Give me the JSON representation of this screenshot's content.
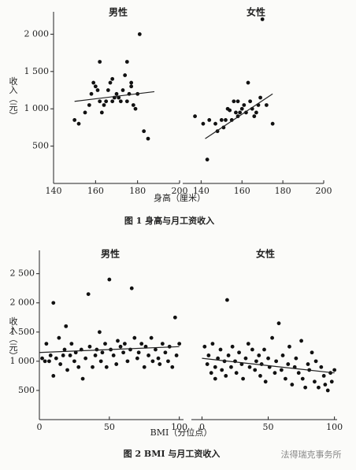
{
  "chart_data": [
    {
      "type": "scatter",
      "title": "图 1  身高与月工资收入",
      "y_label": "收入（元）",
      "x_label": "身高（厘米）",
      "color": "#111111",
      "ylim": [
        0,
        2300
      ],
      "yticks": [
        500,
        {
          "value": 1000,
          "label": "1 000"
        },
        {
          "value": 1500,
          "label": "1 500"
        },
        {
          "value": 2000,
          "label": "2 000"
        }
      ],
      "panels": [
        {
          "title": "男性",
          "xlim": [
            140,
            200
          ],
          "xticks": [
            140,
            160,
            180,
            200
          ],
          "x": [
            150,
            152,
            155,
            157,
            158,
            159,
            160,
            161,
            162,
            162,
            163,
            164,
            165,
            166,
            167,
            168,
            168,
            169,
            170,
            171,
            172,
            173,
            174,
            175,
            175,
            176,
            177,
            177,
            178,
            179,
            180,
            181,
            183,
            185
          ],
          "y": [
            850,
            800,
            950,
            1050,
            1200,
            1350,
            1300,
            1250,
            1630,
            1100,
            950,
            1050,
            1100,
            1250,
            1350,
            1400,
            1100,
            1150,
            1200,
            1150,
            1100,
            1250,
            1450,
            1630,
            1100,
            1200,
            1350,
            1300,
            1050,
            1000,
            1200,
            2000,
            700,
            600
          ],
          "trend": {
            "x": [
              150,
              188
            ],
            "y": [
              1100,
              1230
            ]
          }
        },
        {
          "title": "女性",
          "xlim": [
            131,
            200
          ],
          "xticks": [
            140,
            160,
            180,
            200
          ],
          "x": [
            137,
            141,
            143,
            144,
            147,
            148,
            150,
            151,
            152,
            153,
            154,
            155,
            156,
            157,
            158,
            158,
            159,
            160,
            161,
            162,
            163,
            164,
            165,
            166,
            167,
            168,
            169,
            170,
            172,
            175
          ],
          "y": [
            900,
            800,
            320,
            850,
            800,
            700,
            850,
            750,
            850,
            1000,
            980,
            850,
            1100,
            950,
            900,
            1100,
            950,
            1000,
            1050,
            950,
            1350,
            1100,
            1000,
            900,
            950,
            1050,
            1150,
            2200,
            1050,
            800
          ],
          "trend": {
            "x": [
              142,
              175
            ],
            "y": [
              600,
              1200
            ]
          }
        }
      ]
    },
    {
      "type": "scatter",
      "title": "图 2  BMI 与月工资收入",
      "y_label": "收入（元）",
      "x_label": "BMI（分位点）",
      "color": "#111111",
      "ylim": [
        0,
        2900
      ],
      "yticks": [
        500,
        {
          "value": 1000,
          "label": "1 000"
        },
        {
          "value": 1500,
          "label": "1 500"
        },
        {
          "value": 2000,
          "label": "2 000"
        },
        {
          "value": 2500,
          "label": "2 500"
        }
      ],
      "panels": [
        {
          "title": "男性",
          "xlim": [
            0,
            103
          ],
          "xticks": [
            0,
            50,
            100
          ],
          "x": [
            2,
            4,
            5,
            7,
            8,
            10,
            10,
            12,
            14,
            15,
            17,
            18,
            19,
            20,
            22,
            23,
            25,
            26,
            28,
            30,
            31,
            33,
            35,
            36,
            38,
            40,
            41,
            43,
            44,
            45,
            47,
            48,
            50,
            51,
            53,
            55,
            56,
            58,
            60,
            61,
            63,
            65,
            66,
            68,
            70,
            71,
            73,
            75,
            76,
            78,
            80,
            81,
            83,
            85,
            86,
            88,
            90,
            92,
            93,
            95,
            97,
            98,
            100
          ],
          "y": [
            1050,
            1000,
            1300,
            1000,
            1100,
            750,
            2000,
            1050,
            1400,
            950,
            1100,
            1200,
            1600,
            850,
            1100,
            1300,
            1000,
            1150,
            900,
            1200,
            700,
            1050,
            2150,
            1250,
            900,
            1100,
            1200,
            1500,
            1000,
            1150,
            1300,
            900,
            2400,
            1200,
            1100,
            950,
            1350,
            1250,
            1150,
            1300,
            1000,
            1200,
            2250,
            1400,
            1050,
            1150,
            1300,
            900,
            1250,
            1100,
            1400,
            1000,
            1200,
            1050,
            950,
            1300,
            1150,
            1000,
            1250,
            900,
            1750,
            1100,
            1300
          ],
          "trend": {
            "x": [
              0,
              100
            ],
            "y": [
              1150,
              1250
            ]
          }
        },
        {
          "title": "女性",
          "xlim": [
            -8,
            102
          ],
          "xticks": [
            0,
            50,
            100
          ],
          "x": [
            2,
            4,
            5,
            7,
            8,
            10,
            10,
            12,
            14,
            15,
            17,
            18,
            19,
            20,
            22,
            23,
            25,
            26,
            28,
            30,
            31,
            33,
            35,
            36,
            38,
            40,
            41,
            43,
            44,
            45,
            47,
            48,
            50,
            51,
            53,
            55,
            56,
            58,
            60,
            61,
            63,
            65,
            66,
            68,
            70,
            71,
            73,
            75,
            76,
            78,
            80,
            81,
            83,
            85,
            86,
            88,
            90,
            92,
            93,
            95,
            97,
            98,
            100
          ],
          "y": [
            1250,
            950,
            1100,
            800,
            1300,
            700,
            900,
            1050,
            1200,
            850,
            1000,
            750,
            2050,
            1100,
            900,
            1250,
            1000,
            800,
            1150,
            950,
            700,
            1050,
            1300,
            900,
            1200,
            850,
            1000,
            1100,
            750,
            950,
            1200,
            650,
            1050,
            900,
            1400,
            800,
            1000,
            1650,
            850,
            1100,
            700,
            950,
            1250,
            600,
            900,
            1050,
            800,
            1350,
            700,
            550,
            950,
            850,
            1150,
            650,
            1000,
            550,
            900,
            750,
            600,
            500,
            800,
            650,
            850
          ],
          "trend": {
            "x": [
              0,
              100
            ],
            "y": [
              1050,
              800
            ]
          }
        }
      ]
    }
  ],
  "watermark": "法得瑞克事务所"
}
